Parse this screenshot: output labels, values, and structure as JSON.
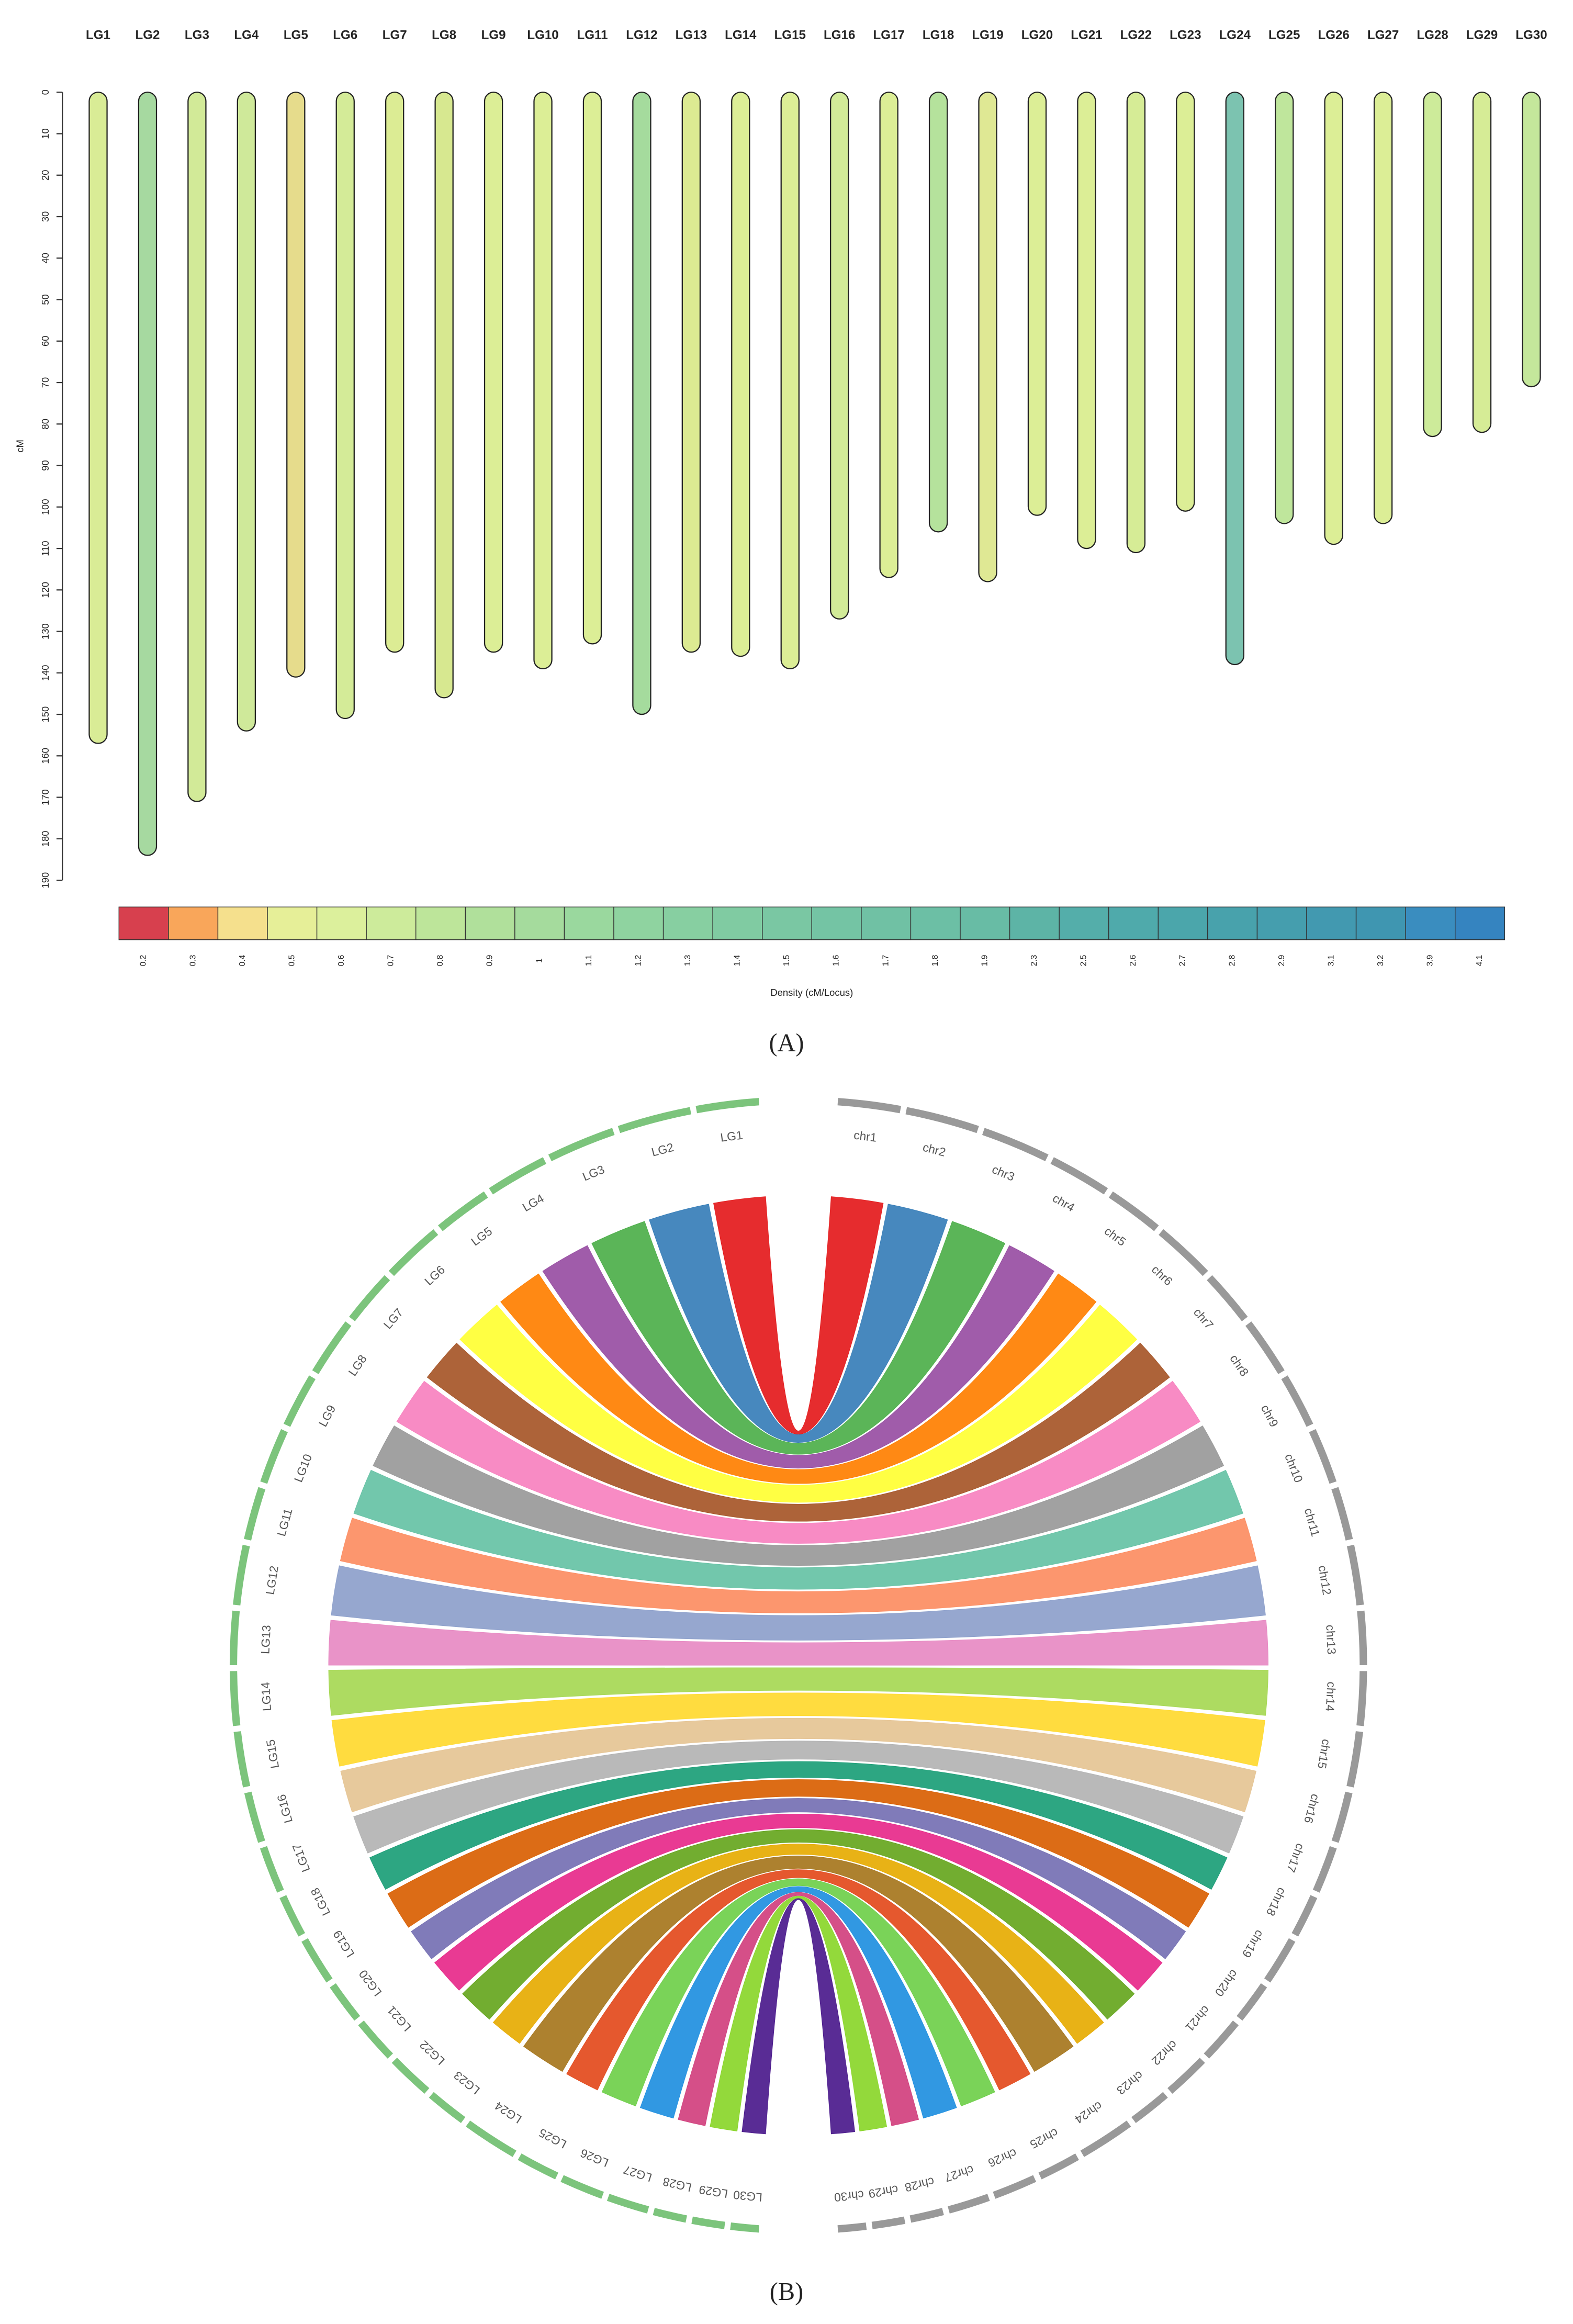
{
  "chart_data": [
    {
      "type": "linkage-map",
      "panel_label": "(A)",
      "y_label": "cM",
      "categories": [
        "LG1",
        "LG2",
        "LG3",
        "LG4",
        "LG5",
        "LG6",
        "LG7",
        "LG8",
        "LG9",
        "LG10",
        "LG11",
        "LG12",
        "LG13",
        "LG14",
        "LG15",
        "LG16",
        "LG17",
        "LG18",
        "LG19",
        "LG20",
        "LG21",
        "LG22",
        "LG23",
        "LG24",
        "LG25",
        "LG26",
        "LG27",
        "LG28",
        "LG29",
        "LG30"
      ],
      "values": [
        157,
        184,
        171,
        154,
        141,
        151,
        135,
        146,
        135,
        139,
        133,
        150,
        135,
        136,
        139,
        127,
        117,
        106,
        118,
        102,
        110,
        111,
        101,
        138,
        104,
        109,
        104,
        83,
        82,
        71
      ],
      "colors": [
        "#d9ec96",
        "#a6d9a0",
        "#d2ea98",
        "#cfe99a",
        "#e6dc8c",
        "#d4eb98",
        "#dcec94",
        "#d7e890",
        "#dcee96",
        "#dcee96",
        "#dcee96",
        "#a5db9d",
        "#dcea92",
        "#dcee96",
        "#dcee96",
        "#d2eb98",
        "#dcee96",
        "#b5e29c",
        "#dfe894",
        "#dcee96",
        "#dcee96",
        "#d6ec96",
        "#dcee96",
        "#7cc3b0",
        "#bfe69c",
        "#dcee96",
        "#dcee96",
        "#cdeb9a",
        "#d6ec96",
        "#c4e79b"
      ],
      "ylim": [
        0,
        190
      ],
      "yticks": [
        0,
        10,
        20,
        30,
        40,
        50,
        60,
        70,
        80,
        90,
        100,
        110,
        120,
        130,
        140,
        150,
        160,
        170,
        180,
        190
      ],
      "legend": {
        "title": "Density (cM/Locus)",
        "labels": [
          0.2,
          0.3,
          0.4,
          0.5,
          0.6,
          0.7,
          0.8,
          0.9,
          1,
          1.1,
          1.2,
          1.3,
          1.4,
          1.5,
          1.6,
          1.7,
          1.8,
          1.9,
          2.3,
          2.5,
          2.6,
          2.7,
          2.8,
          2.9,
          3.1,
          3.2,
          3.9,
          4.1
        ],
        "colors": [
          "#d7404e",
          "#f9a65a",
          "#f5e08d",
          "#e6ef98",
          "#dcf09c",
          "#cdeb9b",
          "#bde59a",
          "#b0e09b",
          "#a5db9d",
          "#9ad89e",
          "#8fd3a0",
          "#87cfa1",
          "#80cba2",
          "#7ac7a3",
          "#74c4a4",
          "#70c1a4",
          "#6cbfa5",
          "#68bca5",
          "#5db4a6",
          "#54aeaa",
          "#4faaab",
          "#4ba6ab",
          "#48a2ac",
          "#459eae",
          "#4299b0",
          "#3f96b1",
          "#3a8dbf",
          "#3584c0"
        ]
      }
    },
    {
      "type": "circos",
      "panel_label": "(B)",
      "left_labels": [
        "LG1",
        "LG2",
        "LG3",
        "LG4",
        "LG5",
        "LG6",
        "LG7",
        "LG8",
        "LG9",
        "LG10",
        "LG11",
        "LG12",
        "LG13",
        "LG14",
        "LG15",
        "LG16",
        "LG17",
        "LG18",
        "LG19",
        "LG20",
        "LG21",
        "LG22",
        "LG23",
        "LG24",
        "LG25",
        "LG26",
        "LG27",
        "LG28",
        "LG29",
        "LG30"
      ],
      "right_labels": [
        "chr1",
        "chr2",
        "chr3",
        "chr4",
        "chr5",
        "chr6",
        "chr7",
        "chr8",
        "chr9",
        "chr10",
        "chr11",
        "chr12",
        "chr13",
        "chr14",
        "chr15",
        "chr16",
        "chr17",
        "chr18",
        "chr19",
        "chr20",
        "chr21",
        "chr22",
        "chr23",
        "chr24",
        "chr25",
        "chr26",
        "chr27",
        "chr28",
        "chr29",
        "chr30"
      ],
      "left_color": "#7cc47c",
      "right_color": "#999999",
      "colors": [
        "#e41a1c",
        "#377eb8",
        "#4daf4a",
        "#984ea3",
        "#ff7f00",
        "#ffff33",
        "#a65628",
        "#f781bf",
        "#999999",
        "#66c2a5",
        "#fc8d62",
        "#8da0cb",
        "#e78ac3",
        "#a6d854",
        "#ffd92f",
        "#e5c494",
        "#b3b3b3",
        "#1b9e77",
        "#d95f02",
        "#7570b3",
        "#e7298a",
        "#66a61e",
        "#e6ab02",
        "#a6761d",
        "#e34a1c",
        "#6fcf4a",
        "#1f8fe0",
        "#d1407e",
        "#8ad62a",
        "#4b1a8c"
      ]
    }
  ]
}
